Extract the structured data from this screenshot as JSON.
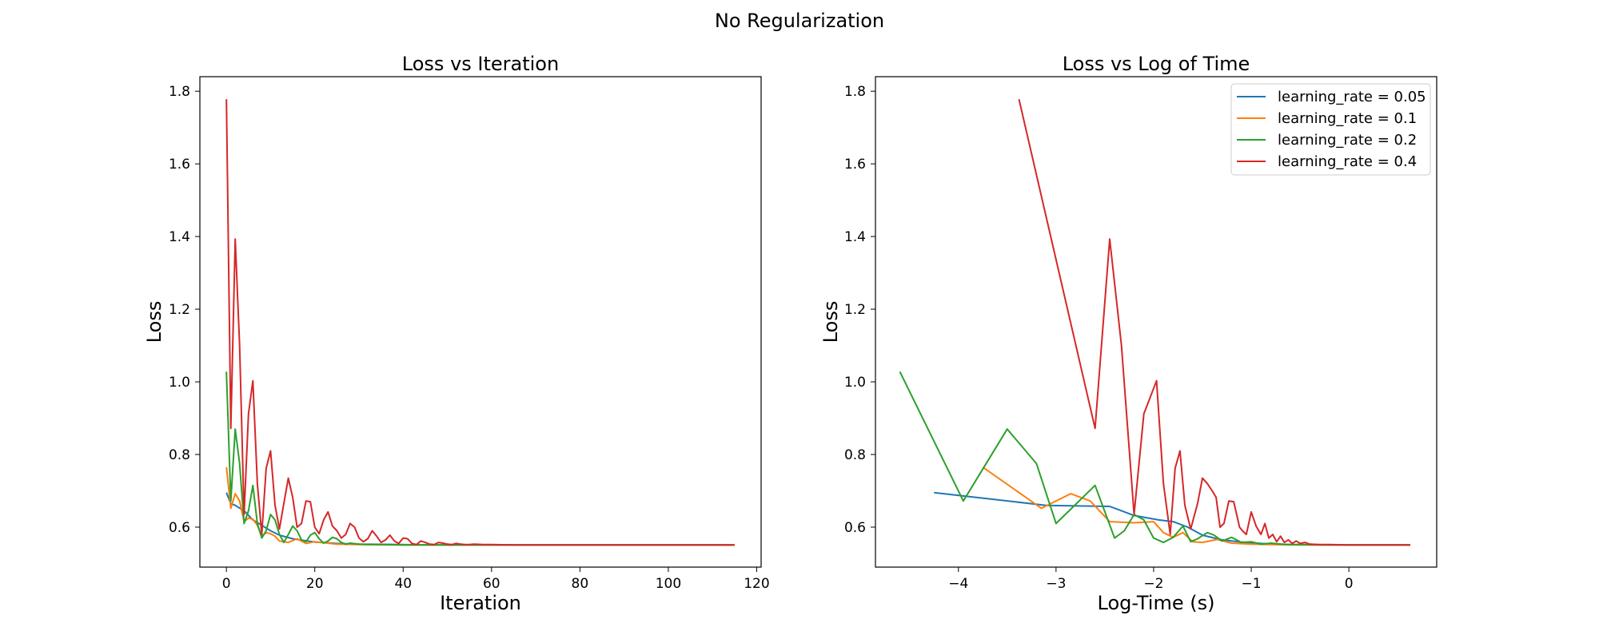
{
  "figure_title": "No Regularization",
  "colors": {
    "blue": "#1f77b4",
    "orange": "#ff7f0e",
    "green": "#2ca02c",
    "red": "#d62728"
  },
  "chart_data": [
    {
      "type": "line",
      "title": "Loss vs Iteration",
      "xlabel": "Iteration",
      "ylabel": "Loss",
      "xlim": [
        -6,
        121
      ],
      "ylim": [
        0.49,
        1.84
      ],
      "xticks": [
        0,
        20,
        40,
        60,
        80,
        100,
        120
      ],
      "yticks": [
        0.6,
        0.8,
        1.0,
        1.2,
        1.4,
        1.6,
        1.8
      ],
      "grid": false,
      "series": [
        {
          "name": "learning_rate = 0.05",
          "color": "#1f77b4",
          "x": [
            0,
            1,
            2,
            4,
            6,
            8,
            10,
            12,
            15,
            20,
            25,
            30,
            40,
            50,
            60,
            80,
            100,
            115
          ],
          "y": [
            0.695,
            0.665,
            0.66,
            0.645,
            0.62,
            0.605,
            0.59,
            0.578,
            0.568,
            0.559,
            0.555,
            0.553,
            0.552,
            0.551,
            0.551,
            0.551,
            0.551,
            0.551
          ]
        },
        {
          "name": "learning_rate = 0.1",
          "color": "#ff7f0e",
          "x": [
            0,
            1,
            2,
            3,
            4,
            5,
            6,
            7,
            8,
            9,
            10,
            11,
            12,
            14,
            16,
            18,
            20,
            25,
            30,
            40,
            60,
            115
          ],
          "y": [
            0.765,
            0.652,
            0.692,
            0.672,
            0.615,
            0.625,
            0.622,
            0.605,
            0.575,
            0.585,
            0.582,
            0.575,
            0.562,
            0.558,
            0.568,
            0.555,
            0.56,
            0.553,
            0.552,
            0.551,
            0.551,
            0.551
          ]
        },
        {
          "name": "learning_rate = 0.2",
          "color": "#2ca02c",
          "x": [
            0,
            1,
            2,
            3,
            4,
            5,
            6,
            7,
            8,
            9,
            10,
            11,
            12,
            13,
            14,
            15,
            16,
            17,
            18,
            19,
            20,
            21,
            22,
            23,
            24,
            25,
            26,
            27,
            28,
            30,
            32,
            35,
            40,
            50,
            60,
            115
          ],
          "y": [
            1.028,
            0.672,
            0.87,
            0.775,
            0.61,
            0.645,
            0.715,
            0.61,
            0.57,
            0.59,
            0.635,
            0.62,
            0.58,
            0.558,
            0.58,
            0.603,
            0.59,
            0.565,
            0.56,
            0.578,
            0.585,
            0.568,
            0.556,
            0.562,
            0.572,
            0.568,
            0.558,
            0.553,
            0.556,
            0.553,
            0.552,
            0.552,
            0.551,
            0.551,
            0.551,
            0.551
          ]
        },
        {
          "name": "learning_rate = 0.4",
          "color": "#d62728",
          "x": [
            0,
            1,
            2,
            3,
            4,
            5,
            6,
            7,
            8,
            9,
            10,
            11,
            12,
            13,
            14,
            15,
            16,
            17,
            18,
            19,
            20,
            21,
            22,
            23,
            24,
            25,
            26,
            27,
            28,
            29,
            30,
            31,
            32,
            33,
            34,
            35,
            36,
            37,
            38,
            39,
            40,
            41,
            42,
            43,
            44,
            45,
            46,
            47,
            48,
            49,
            50,
            51,
            52,
            53,
            54,
            55,
            56,
            58,
            60,
            65,
            70,
            80,
            100,
            115
          ],
          "y": [
            1.778,
            0.872,
            1.393,
            1.1,
            0.635,
            0.912,
            1.003,
            0.72,
            0.58,
            0.762,
            0.81,
            0.66,
            0.595,
            0.665,
            0.735,
            0.682,
            0.6,
            0.61,
            0.672,
            0.67,
            0.6,
            0.582,
            0.62,
            0.642,
            0.603,
            0.59,
            0.57,
            0.58,
            0.61,
            0.6,
            0.57,
            0.56,
            0.568,
            0.59,
            0.575,
            0.558,
            0.565,
            0.578,
            0.562,
            0.555,
            0.57,
            0.568,
            0.555,
            0.552,
            0.562,
            0.558,
            0.553,
            0.552,
            0.558,
            0.556,
            0.553,
            0.552,
            0.555,
            0.553,
            0.552,
            0.552,
            0.553,
            0.552,
            0.552,
            0.551,
            0.551,
            0.551,
            0.551,
            0.551
          ]
        }
      ]
    },
    {
      "type": "line",
      "title": "Loss vs Log of Time",
      "xlabel": "Log-Time (s)",
      "ylabel": "Loss",
      "xlim": [
        -4.85,
        0.9
      ],
      "ylim": [
        0.49,
        1.84
      ],
      "xticks": [
        -4,
        -3,
        -2,
        -1,
        0
      ],
      "xtick_labels": [
        "−4",
        "−3",
        "−2",
        "−1",
        "0"
      ],
      "yticks": [
        0.6,
        0.8,
        1.0,
        1.2,
        1.4,
        1.6,
        1.8
      ],
      "grid": false,
      "legend_position": "top-right",
      "series": [
        {
          "name": "learning_rate = 0.05",
          "color": "#1f77b4",
          "x": [
            -4.25,
            -3.1,
            -2.45,
            -2.2,
            -1.95,
            -1.8,
            -1.65,
            -1.5,
            -1.3,
            -1.1,
            -0.9,
            -0.6,
            -0.3,
            0,
            0.63
          ],
          "y": [
            0.695,
            0.66,
            0.657,
            0.632,
            0.62,
            0.615,
            0.6,
            0.578,
            0.565,
            0.559,
            0.555,
            0.552,
            0.551,
            0.551,
            0.551
          ]
        },
        {
          "name": "learning_rate = 0.1",
          "color": "#ff7f0e",
          "x": [
            -3.75,
            -3.15,
            -2.85,
            -2.65,
            -2.45,
            -2.2,
            -2.0,
            -1.9,
            -1.8,
            -1.7,
            -1.6,
            -1.5,
            -1.35,
            -1.2,
            -1.0,
            -0.8,
            -0.5,
            0,
            0.63
          ],
          "y": [
            0.765,
            0.652,
            0.692,
            0.672,
            0.615,
            0.612,
            0.615,
            0.585,
            0.572,
            0.585,
            0.56,
            0.558,
            0.566,
            0.556,
            0.553,
            0.552,
            0.551,
            0.551,
            0.551
          ]
        },
        {
          "name": "learning_rate = 0.2",
          "color": "#2ca02c",
          "x": [
            -4.6,
            -3.95,
            -3.5,
            -3.2,
            -3.0,
            -2.6,
            -2.4,
            -2.3,
            -2.2,
            -2.1,
            -2.0,
            -1.9,
            -1.8,
            -1.7,
            -1.62,
            -1.55,
            -1.45,
            -1.38,
            -1.3,
            -1.2,
            -1.1,
            -1.0,
            -0.9,
            -0.8,
            -0.65,
            -0.5,
            0,
            0.63
          ],
          "y": [
            1.028,
            0.672,
            0.87,
            0.775,
            0.61,
            0.715,
            0.57,
            0.59,
            0.635,
            0.62,
            0.57,
            0.558,
            0.572,
            0.603,
            0.56,
            0.568,
            0.585,
            0.578,
            0.562,
            0.572,
            0.558,
            0.56,
            0.553,
            0.556,
            0.552,
            0.552,
            0.551,
            0.551
          ]
        },
        {
          "name": "learning_rate = 0.4",
          "color": "#d62728",
          "x": [
            -3.38,
            -2.6,
            -2.45,
            -2.33,
            -2.2,
            -2.1,
            -1.97,
            -1.9,
            -1.83,
            -1.78,
            -1.73,
            -1.68,
            -1.62,
            -1.55,
            -1.5,
            -1.45,
            -1.4,
            -1.36,
            -1.32,
            -1.28,
            -1.23,
            -1.18,
            -1.12,
            -1.09,
            -1.05,
            -1.0,
            -0.95,
            -0.9,
            -0.86,
            -0.82,
            -0.78,
            -0.74,
            -0.7,
            -0.66,
            -0.62,
            -0.58,
            -0.54,
            -0.5,
            -0.45,
            -0.4,
            -0.3,
            -0.2,
            0,
            0.63
          ],
          "y": [
            1.778,
            0.872,
            1.393,
            1.1,
            0.635,
            0.912,
            1.003,
            0.72,
            0.58,
            0.762,
            0.81,
            0.66,
            0.595,
            0.665,
            0.735,
            0.72,
            0.7,
            0.682,
            0.6,
            0.61,
            0.672,
            0.67,
            0.6,
            0.59,
            0.58,
            0.642,
            0.603,
            0.58,
            0.61,
            0.57,
            0.58,
            0.56,
            0.575,
            0.558,
            0.565,
            0.555,
            0.562,
            0.555,
            0.558,
            0.553,
            0.552,
            0.552,
            0.551,
            0.551
          ]
        }
      ]
    }
  ]
}
